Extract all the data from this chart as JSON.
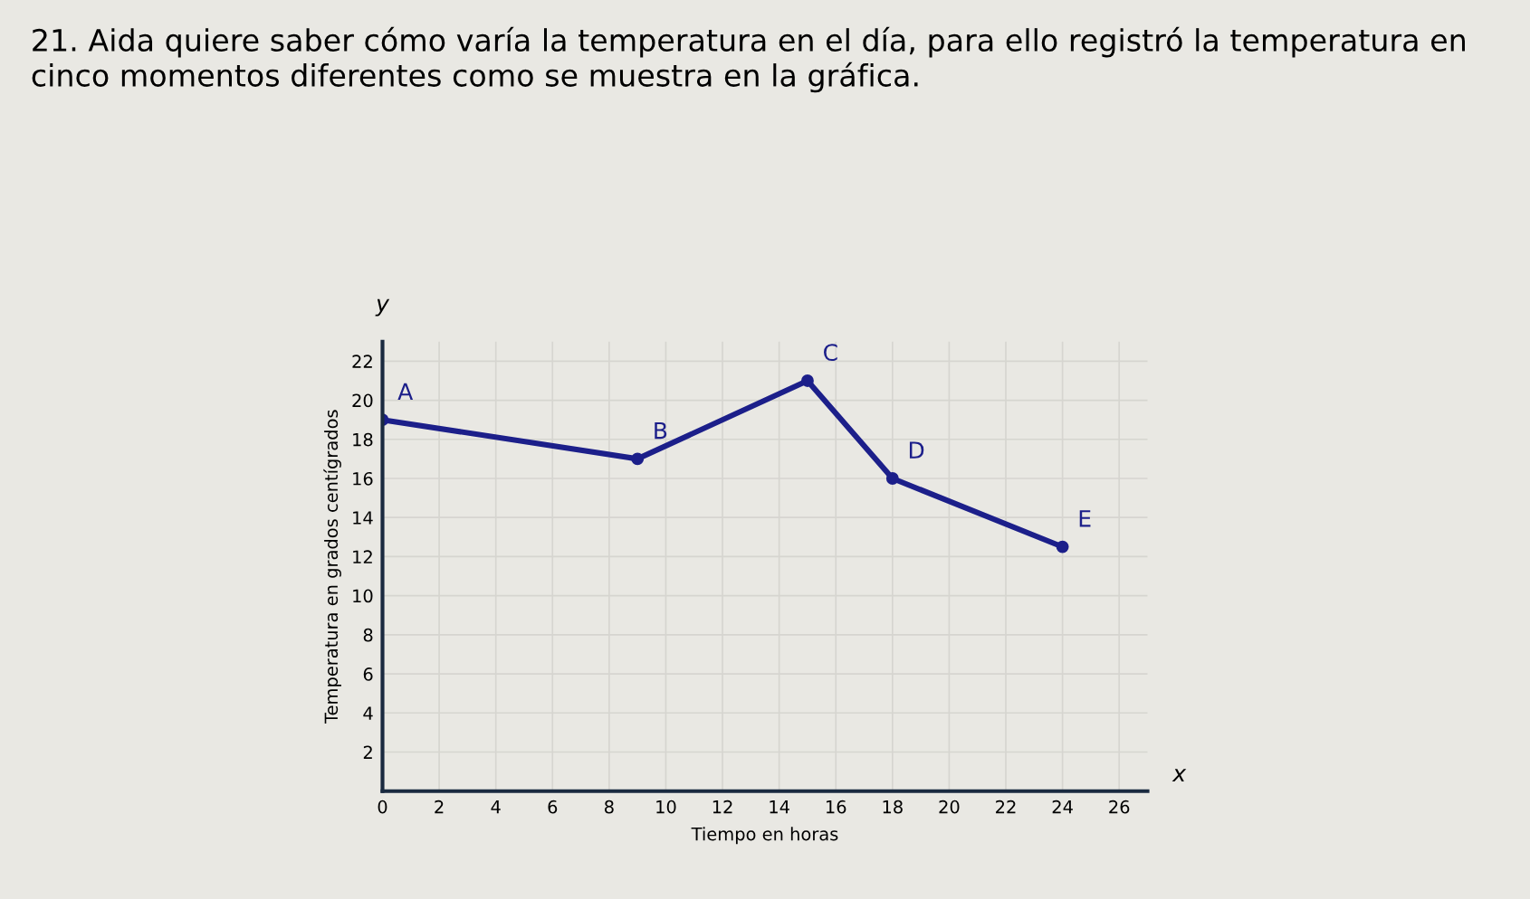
{
  "chart_data": {
    "type": "line",
    "title": "21. Aida quiere saber cómo varía la temperatura en el día, para ello registró la temperatura en cinco momentos diferentes como se muestra en la gráfica.",
    "xlabel": "Tiempo en horas",
    "ylabel": "Temperatura en grados centígrados",
    "x": [
      0,
      9,
      15,
      18,
      24
    ],
    "series": [
      {
        "color": "#1c1f8a",
        "values": [
          19,
          17,
          21,
          16,
          12.5
        ]
      }
    ],
    "annotations": [
      {
        "text": "A",
        "x": 0,
        "y": 19
      },
      {
        "text": "B",
        "x": 9,
        "y": 17
      },
      {
        "text": "C",
        "x": 15,
        "y": 21
      },
      {
        "text": "D",
        "x": 18,
        "y": 16
      },
      {
        "text": "E",
        "x": 24,
        "y": 12.5
      },
      "y",
      "x"
    ],
    "xlim": [
      0,
      27
    ],
    "ylim": [
      0,
      23
    ],
    "xticks": [
      0,
      2,
      4,
      6,
      8,
      10,
      12,
      14,
      16,
      18,
      20,
      22,
      24,
      26
    ],
    "yticks": [
      {
        "value": 0,
        "label": null
      },
      2,
      4,
      6,
      8,
      10,
      12,
      14,
      16,
      18,
      20,
      22
    ],
    "grid": true,
    "marker": "circle",
    "line_style": "solid"
  }
}
